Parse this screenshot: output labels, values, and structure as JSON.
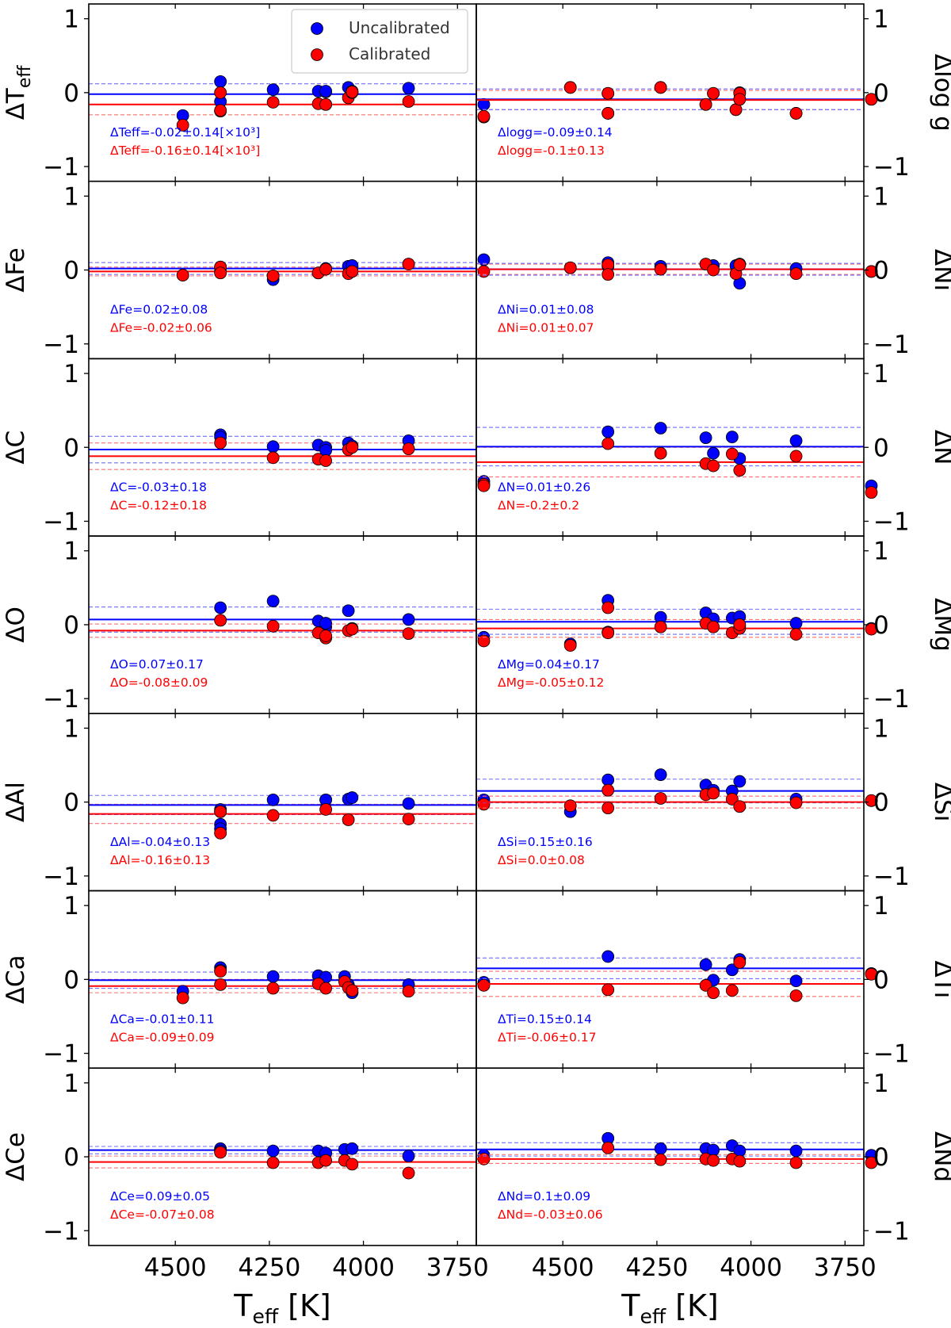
{
  "colors": {
    "uncal": "#0000ff",
    "cal": "#ff0000",
    "uncal_dash": "#6d6dff",
    "cal_dash": "#ff6d6d"
  },
  "legend": {
    "uncal_label": "Uncalibrated",
    "cal_label": "Calibrated"
  },
  "x_axis": {
    "label_main": "T",
    "label_sub": "eff",
    "label_unit": " [K]",
    "ticks": [
      "4500",
      "4250",
      "4000",
      "3750"
    ],
    "tick_values": [
      4500,
      4250,
      4000,
      3750
    ],
    "xlim": [
      4730,
      3700
    ]
  },
  "y_axis": {
    "ticks": [
      "1",
      "0",
      "−1"
    ],
    "tick_values": [
      1,
      0,
      -1
    ],
    "ylim": [
      -1.2,
      1.2
    ]
  },
  "chart_data": [
    {
      "type": "scatter",
      "panel": "Teff",
      "ylabel": "ΔT",
      "ylabel_sub": "eff",
      "side": "left",
      "row": 0,
      "col": 0,
      "teff": [
        4480,
        4380,
        4380,
        4380,
        4240,
        4120,
        4100,
        4100,
        4040,
        4030,
        4030,
        3880,
        3880,
        3680,
        3680
      ],
      "uncal": [
        -0.31,
        0.15,
        -0.12,
        null,
        0.04,
        0.02,
        0.01,
        0.02,
        0.07,
        0.01,
        0.02,
        0.06,
        null,
        -0.16,
        null
      ],
      "cal": [
        -0.44,
        0.0,
        -0.25,
        -0.24,
        -0.13,
        -0.15,
        -0.16,
        -0.16,
        -0.07,
        0.0,
        0.01,
        -0.12,
        null,
        -0.33,
        -0.32
      ],
      "uncal_mean": -0.02,
      "uncal_std": 0.14,
      "cal_mean": -0.16,
      "cal_std": 0.14,
      "uncal_text": "ΔTeff=-0.02±0.14[×10³]",
      "cal_text": "ΔTeff=-0.16±0.14[×10³]"
    },
    {
      "type": "scatter",
      "panel": "logg",
      "ylabel": "Δlog g",
      "side": "right",
      "row": 0,
      "col": 1,
      "teff": [
        4480,
        4380,
        4380,
        4240,
        4120,
        4100,
        4040,
        4030,
        4030,
        3880,
        3680
      ],
      "uncal": [
        0.07,
        -0.01,
        -0.28,
        0.07,
        -0.16,
        -0.01,
        -0.23,
        0.0,
        -0.09,
        -0.28,
        -0.09
      ],
      "cal": [
        0.07,
        -0.01,
        -0.28,
        0.07,
        -0.16,
        -0.01,
        -0.23,
        -0.01,
        -0.09,
        -0.28,
        -0.09
      ],
      "uncal_mean": -0.09,
      "uncal_std": 0.14,
      "cal_mean": -0.1,
      "cal_std": 0.13,
      "uncal_text": "Δlogg=-0.09±0.14",
      "cal_text": "Δlogg=-0.1±0.13"
    },
    {
      "type": "scatter",
      "panel": "Fe",
      "ylabel": "ΔFe",
      "side": "left",
      "row": 1,
      "col": 0,
      "teff": [
        4480,
        4380,
        4380,
        4240,
        4240,
        4120,
        4100,
        4040,
        4030,
        3880,
        3680
      ],
      "uncal": [
        -0.07,
        0.04,
        -0.02,
        -0.13,
        -0.08,
        -0.04,
        0.02,
        0.05,
        0.06,
        0.08,
        0.14
      ],
      "cal": [
        -0.07,
        0.04,
        -0.04,
        -0.08,
        -0.08,
        -0.04,
        0.01,
        -0.05,
        -0.02,
        0.08,
        -0.02
      ],
      "uncal_mean": 0.02,
      "uncal_std": 0.08,
      "cal_mean": -0.02,
      "cal_std": 0.06,
      "uncal_text": "ΔFe=0.02±0.08",
      "cal_text": "ΔFe=-0.02±0.06"
    },
    {
      "type": "scatter",
      "panel": "Ni",
      "ylabel": "ΔNi",
      "side": "right",
      "row": 1,
      "col": 1,
      "teff": [
        4480,
        4380,
        4380,
        4240,
        4120,
        4100,
        4040,
        4030,
        4030,
        3880,
        3680
      ],
      "uncal": [
        0.03,
        0.1,
        0.05,
        0.05,
        0.08,
        0.06,
        0.06,
        0.08,
        -0.18,
        0.02,
        -0.02
      ],
      "cal": [
        0.03,
        0.07,
        -0.06,
        0.01,
        0.08,
        0.0,
        -0.05,
        0.08,
        0.07,
        -0.05,
        -0.02
      ],
      "uncal_mean": 0.01,
      "uncal_std": 0.08,
      "cal_mean": 0.01,
      "cal_std": 0.07,
      "uncal_text": "ΔNi=0.01±0.08",
      "cal_text": "ΔNi=0.01±0.07"
    },
    {
      "type": "scatter",
      "panel": "C",
      "ylabel": "ΔC",
      "side": "left",
      "row": 2,
      "col": 0,
      "teff": [
        4380,
        4380,
        4240,
        4120,
        4100,
        4100,
        4040,
        4030,
        3880,
        3680,
        3680
      ],
      "uncal": [
        0.17,
        0.14,
        0.01,
        0.03,
        0.0,
        -0.04,
        0.06,
        0.02,
        0.09,
        -0.46,
        null
      ],
      "cal": [
        0.06,
        null,
        -0.14,
        -0.16,
        -0.18,
        null,
        -0.03,
        0.0,
        -0.02,
        -0.5,
        -0.52
      ],
      "uncal_mean": -0.03,
      "uncal_std": 0.18,
      "cal_mean": -0.12,
      "cal_std": 0.18,
      "uncal_text": "ΔC=-0.03±0.18",
      "cal_text": "ΔC=-0.12±0.18"
    },
    {
      "type": "scatter",
      "panel": "N",
      "ylabel": "ΔN",
      "side": "right",
      "row": 2,
      "col": 1,
      "teff": [
        4380,
        4240,
        4120,
        4100,
        4050,
        4030,
        3880,
        3680
      ],
      "uncal": [
        0.21,
        0.26,
        0.13,
        -0.08,
        0.14,
        -0.15,
        0.09,
        -0.52
      ],
      "cal": [
        0.05,
        -0.08,
        -0.22,
        -0.25,
        -0.09,
        -0.31,
        -0.12,
        -0.61
      ],
      "uncal_mean": 0.01,
      "uncal_std": 0.26,
      "cal_mean": -0.2,
      "cal_std": 0.2,
      "uncal_text": "ΔN=0.01±0.26",
      "cal_text": "ΔN=-0.2±0.2"
    },
    {
      "type": "scatter",
      "panel": "O",
      "ylabel": "ΔO",
      "side": "left",
      "row": 3,
      "col": 0,
      "teff": [
        4380,
        4240,
        4120,
        4100,
        4100,
        4040,
        4030,
        3880,
        3680
      ],
      "uncal": [
        0.23,
        0.32,
        0.05,
        -0.03,
        0.02,
        0.19,
        -0.05,
        0.07,
        -0.17
      ],
      "cal": [
        0.06,
        -0.02,
        -0.11,
        -0.18,
        -0.15,
        -0.08,
        -0.06,
        -0.12,
        -0.22
      ],
      "uncal_mean": 0.07,
      "uncal_std": 0.17,
      "cal_mean": -0.08,
      "cal_std": 0.09,
      "uncal_text": "ΔO=0.07±0.17",
      "cal_text": "ΔO=-0.08±0.09"
    },
    {
      "type": "scatter",
      "panel": "Mg",
      "ylabel": "ΔMg",
      "side": "right",
      "row": 3,
      "col": 1,
      "teff": [
        4480,
        4380,
        4380,
        4240,
        4120,
        4100,
        4050,
        4030,
        4030,
        3880,
        3680
      ],
      "uncal": [
        -0.26,
        0.33,
        -0.1,
        0.1,
        0.16,
        0.08,
        0.09,
        0.11,
        -0.02,
        0.02,
        -0.05
      ],
      "cal": [
        -0.28,
        0.23,
        -0.11,
        -0.03,
        0.02,
        -0.03,
        -0.11,
        -0.05,
        0.0,
        -0.13,
        -0.06
      ],
      "uncal_mean": 0.04,
      "uncal_std": 0.17,
      "cal_mean": -0.05,
      "cal_std": 0.12,
      "uncal_text": "ΔMg=0.04±0.17",
      "cal_text": "ΔMg=-0.05±0.12"
    },
    {
      "type": "scatter",
      "panel": "Al",
      "ylabel": "ΔAl",
      "side": "left",
      "row": 4,
      "col": 0,
      "teff": [
        4380,
        4380,
        4380,
        4380,
        4240,
        4100,
        4100,
        4040,
        4030,
        3880,
        3680
      ],
      "uncal": [
        -0.1,
        -0.3,
        -0.36,
        null,
        0.03,
        0.03,
        0.03,
        0.04,
        0.06,
        -0.02,
        0.03
      ],
      "cal": [
        -0.13,
        null,
        -0.42,
        -0.13,
        -0.18,
        -0.1,
        null,
        -0.24,
        null,
        -0.23,
        -0.03
      ],
      "uncal_mean": -0.04,
      "uncal_std": 0.13,
      "cal_mean": -0.16,
      "cal_std": 0.13,
      "uncal_text": "ΔAl=-0.04±0.13",
      "cal_text": "ΔAl=-0.16±0.13"
    },
    {
      "type": "scatter",
      "panel": "Si",
      "ylabel": "ΔSi",
      "side": "right",
      "row": 4,
      "col": 1,
      "teff": [
        4480,
        4380,
        4380,
        4240,
        4120,
        4100,
        4050,
        4030,
        3880,
        3680
      ],
      "uncal": [
        -0.13,
        0.3,
        null,
        0.37,
        0.23,
        0.16,
        0.15,
        0.28,
        0.04,
        0.02
      ],
      "cal": [
        -0.05,
        0.16,
        -0.08,
        0.05,
        0.1,
        0.12,
        0.04,
        -0.06,
        -0.01,
        0.02
      ],
      "uncal_mean": 0.15,
      "uncal_std": 0.16,
      "cal_mean": 0.0,
      "cal_std": 0.08,
      "uncal_text": "ΔSi=0.15±0.16",
      "cal_text": "ΔSi=0.0±0.08"
    },
    {
      "type": "scatter",
      "panel": "Ca",
      "ylabel": "ΔCa",
      "side": "left",
      "row": 5,
      "col": 0,
      "teff": [
        4480,
        4380,
        4380,
        4240,
        4120,
        4100,
        4050,
        4040,
        4030,
        3880,
        3680
      ],
      "uncal": [
        -0.16,
        0.16,
        0.12,
        0.04,
        0.05,
        0.03,
        0.04,
        -0.07,
        -0.18,
        -0.07,
        -0.04
      ],
      "cal": [
        -0.25,
        0.11,
        -0.07,
        -0.12,
        -0.06,
        -0.12,
        -0.03,
        -0.11,
        -0.15,
        -0.16,
        -0.08
      ],
      "uncal_mean": -0.01,
      "uncal_std": 0.11,
      "cal_mean": -0.09,
      "cal_std": 0.09,
      "uncal_text": "ΔCa=-0.01±0.11",
      "cal_text": "ΔCa=-0.09±0.09"
    },
    {
      "type": "scatter",
      "panel": "Ti",
      "ylabel": "ΔTi",
      "side": "right",
      "row": 5,
      "col": 1,
      "teff": [
        4380,
        4120,
        4100,
        4050,
        4030,
        3880,
        3680
      ],
      "uncal": [
        0.31,
        0.2,
        -0.01,
        0.13,
        0.27,
        -0.02,
        0.08
      ],
      "cal": [
        -0.14,
        -0.08,
        -0.18,
        -0.15,
        0.23,
        -0.22,
        0.07
      ],
      "uncal_mean": 0.15,
      "uncal_std": 0.14,
      "cal_mean": -0.06,
      "cal_std": 0.17,
      "uncal_text": "ΔTi=0.15±0.14",
      "cal_text": "ΔTi=-0.06±0.17"
    },
    {
      "type": "scatter",
      "panel": "Ce",
      "ylabel": "ΔCe",
      "side": "left",
      "row": 6,
      "col": 0,
      "teff": [
        4380,
        4380,
        4240,
        4120,
        4100,
        4050,
        4030,
        3880,
        3680
      ],
      "uncal": [
        0.11,
        0.08,
        0.08,
        0.08,
        0.05,
        0.1,
        0.11,
        0.01,
        0.02
      ],
      "cal": [
        0.06,
        null,
        -0.08,
        -0.08,
        -0.05,
        -0.05,
        -0.1,
        -0.22,
        -0.03
      ],
      "uncal_mean": 0.09,
      "uncal_std": 0.05,
      "cal_mean": -0.07,
      "cal_std": 0.08,
      "uncal_text": "ΔCe=0.09±0.05",
      "cal_text": "ΔCe=-0.07±0.08"
    },
    {
      "type": "scatter",
      "panel": "Nd",
      "ylabel": "ΔNd",
      "side": "right",
      "row": 6,
      "col": 1,
      "teff": [
        4380,
        4240,
        4120,
        4100,
        4050,
        4030,
        3880,
        3680
      ],
      "uncal": [
        0.25,
        0.11,
        0.11,
        0.09,
        0.15,
        0.08,
        0.08,
        0.02
      ],
      "cal": [
        0.12,
        -0.04,
        -0.03,
        -0.05,
        -0.03,
        -0.06,
        -0.08,
        -0.08
      ],
      "uncal_mean": 0.1,
      "uncal_std": 0.09,
      "cal_mean": -0.03,
      "cal_std": 0.06,
      "uncal_text": "ΔNd=0.1±0.09",
      "cal_text": "ΔNd=-0.03±0.06"
    }
  ]
}
